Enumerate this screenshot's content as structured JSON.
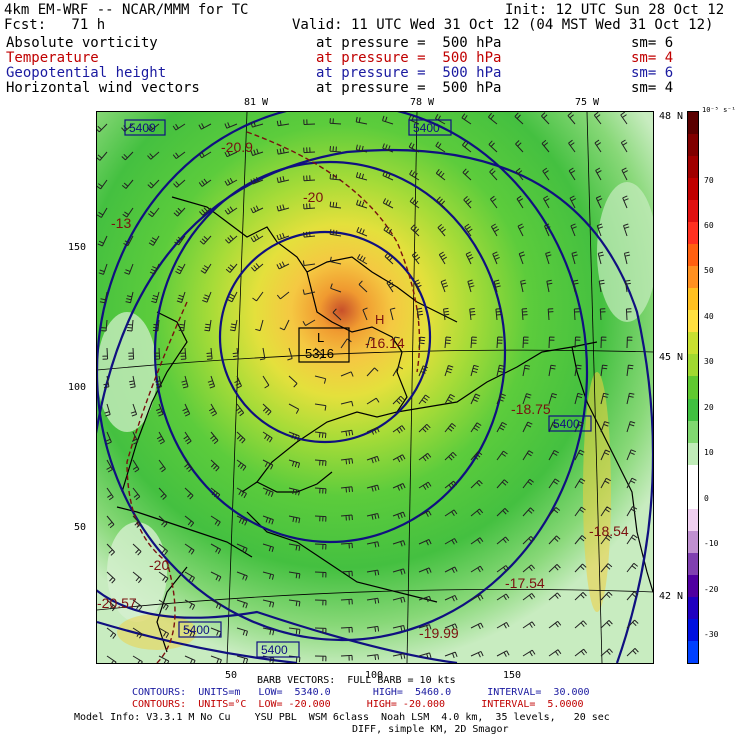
{
  "header": {
    "model": "4km EM-WRF -- NCAR/MMM for TC",
    "init": "Init: 12 UTC Sun 28 Oct 12",
    "fcst": "Fcst:   71 h",
    "valid": "Valid: 11 UTC Wed 31 Oct 12 (04 MST Wed 31 Oct 12)"
  },
  "fields": [
    {
      "name": "Absolute vorticity",
      "level": "at pressure =  500 hPa",
      "sm": "sm= 6",
      "color": "#000000"
    },
    {
      "name": "Temperature",
      "level": "at pressure =  500 hPa",
      "sm": "sm= 4",
      "color": "#c00000"
    },
    {
      "name": "Geopotential height",
      "level": "at pressure =  500 hPa",
      "sm": "sm= 6",
      "color": "#1a1aa0"
    },
    {
      "name": "Horizontal wind vectors",
      "level": "at pressure =  500 hPa",
      "sm": "sm= 4",
      "color": "#000000"
    }
  ],
  "lon_labels": [
    "81 W",
    "78 W",
    "75 W"
  ],
  "lat_labels": [
    "48 N",
    "45 N",
    "42 N"
  ],
  "x_ticks": [
    "50",
    "100",
    "150"
  ],
  "y_ticks": [
    "150",
    "100",
    "50"
  ],
  "colorbar": {
    "unit": "10⁻⁵ s⁻¹",
    "labels": [
      "70",
      "60",
      "50",
      "40",
      "30",
      "20",
      "10",
      "0",
      "-10",
      "-20",
      "-30"
    ]
  },
  "map_labels": {
    "h5400_a": "5400",
    "h5400_b": "5400",
    "h5400_c": "5400",
    "h5400_d": "5400",
    "h5400_e": "5400",
    "low_mark": "L",
    "low_value": "5316",
    "high_mark": "H",
    "t1": "-20.9",
    "t2": "-20",
    "t3": "-16.14",
    "t4": "-18.75",
    "t5": "-18.54",
    "t6": "-17.54",
    "t7": "-19.99",
    "t8": "-20",
    "t9": "-20.57",
    "t10": "-13"
  },
  "footer": {
    "barb": "BARB VECTORS:  FULL BARB = 10 kts",
    "contours1": "CONTOURS:  UNITS=m   LOW=  5340.0       HIGH=  5460.0      INTERVAL=  30.000",
    "contours2": "CONTOURS:  UNITS=°C  LOW= -20.000      HIGH= -20.000      INTERVAL=  5.0000",
    "model_info": "Model Info: V3.3.1 M No Cu    YSU PBL  WSM 6class  Noah LSM  4.0 km,  35 levels,   20 sec",
    "model_info2": "DIFF, simple KM, 2D Smagor"
  }
}
